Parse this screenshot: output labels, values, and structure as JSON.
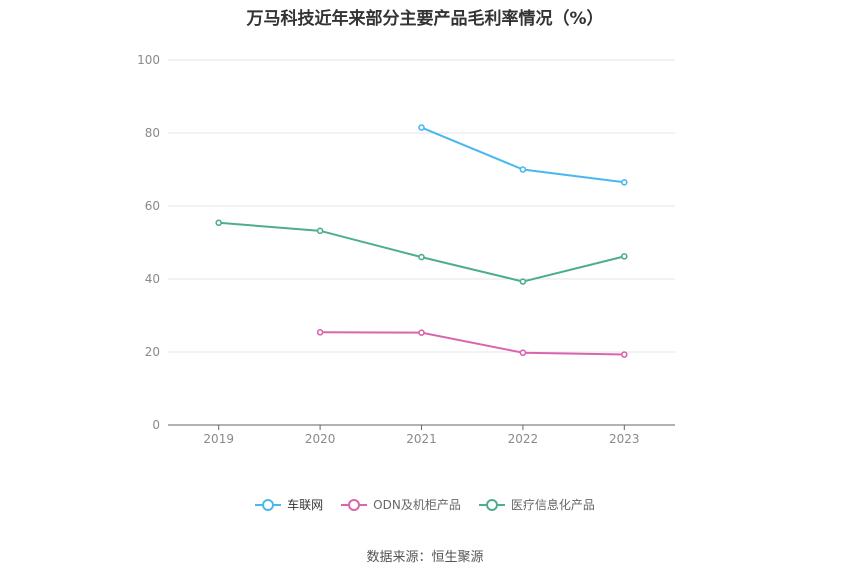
{
  "chart_data": {
    "type": "line",
    "title": "万马科技近年来部分主要产品毛利率情况（%）",
    "x": [
      "2019",
      "2020",
      "2021",
      "2022",
      "2023"
    ],
    "ylim": [
      0,
      100
    ],
    "yticks": [
      0,
      20,
      40,
      60,
      80,
      100
    ],
    "grid": true,
    "legend_position": "bottom",
    "series": [
      {
        "name": "车联网",
        "color": "#4ab8f0",
        "values": [
          null,
          null,
          81.5,
          70.0,
          66.5
        ]
      },
      {
        "name": "ODN及机柜产品",
        "color": "#d966ad",
        "values": [
          null,
          25.4,
          25.3,
          19.8,
          19.3
        ]
      },
      {
        "name": "医疗信息化产品",
        "color": "#4cae8e",
        "values": [
          55.4,
          53.2,
          46.0,
          39.3,
          46.2
        ]
      }
    ]
  },
  "source": "数据来源：恒生聚源"
}
